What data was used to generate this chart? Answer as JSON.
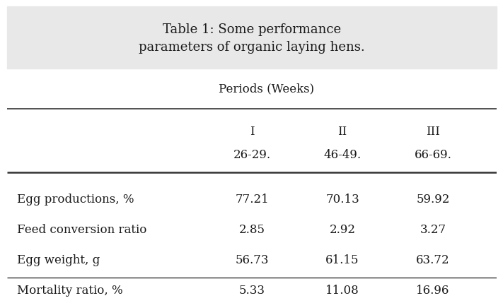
{
  "title": "Table 1: Some performance\nparameters of organic laying hens.",
  "period_header": "Periods (Weeks)",
  "col_headers_roman": [
    "I",
    "II",
    "III"
  ],
  "col_headers_range": [
    "26-29.",
    "46-49.",
    "66-69."
  ],
  "row_labels": [
    "Egg productions, %",
    "Feed conversion ratio",
    "Egg weight, g",
    "Mortality ratio, %"
  ],
  "data": [
    [
      "77.21",
      "70.13",
      "59.92"
    ],
    [
      "2.85",
      "2.92",
      "3.27"
    ],
    [
      "56.73",
      "61.15",
      "63.72"
    ],
    [
      "5.33",
      "11.08",
      "16.96"
    ]
  ],
  "title_bg_color": "#e8e8e8",
  "body_bg_color": "#ffffff",
  "title_fontsize": 13,
  "header_fontsize": 12,
  "body_fontsize": 12,
  "text_color": "#1a1a1a",
  "line_color": "#333333"
}
